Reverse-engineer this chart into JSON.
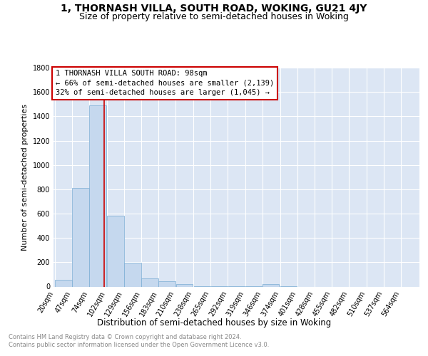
{
  "title": "1, THORNASH VILLA, SOUTH ROAD, WOKING, GU21 4JY",
  "subtitle": "Size of property relative to semi-detached houses in Woking",
  "xlabel": "Distribution of semi-detached houses by size in Woking",
  "ylabel": "Number of semi-detached properties",
  "bins_start": [
    20,
    47,
    74,
    102,
    129,
    156,
    183,
    210,
    238,
    265,
    292,
    319,
    346,
    374,
    401,
    428,
    455,
    482,
    510,
    537
  ],
  "bin_width": 27,
  "last_tick": 564,
  "values": [
    55,
    810,
    1490,
    580,
    195,
    65,
    45,
    20,
    5,
    3,
    2,
    2,
    20,
    2,
    0,
    0,
    0,
    0,
    0,
    0
  ],
  "bar_color": "#c5d8ee",
  "bar_edge_color": "#7aadd4",
  "property_size": 98,
  "annotation_line1": "1 THORNASH VILLA SOUTH ROAD: 98sqm",
  "annotation_line2": "← 66% of semi-detached houses are smaller (2,139)",
  "annotation_line3": "32% of semi-detached houses are larger (1,045) →",
  "vline_color": "#cc0000",
  "annotation_edge_color": "#cc0000",
  "annotation_bg": "#ffffff",
  "ylim": [
    0,
    1800
  ],
  "yticks": [
    0,
    200,
    400,
    600,
    800,
    1000,
    1200,
    1400,
    1600,
    1800
  ],
  "xtick_labels": [
    "20sqm",
    "47sqm",
    "74sqm",
    "102sqm",
    "129sqm",
    "156sqm",
    "183sqm",
    "210sqm",
    "238sqm",
    "265sqm",
    "292sqm",
    "319sqm",
    "346sqm",
    "374sqm",
    "401sqm",
    "428sqm",
    "455sqm",
    "482sqm",
    "510sqm",
    "537sqm",
    "564sqm"
  ],
  "plot_bg_color": "#dce6f4",
  "grid_color": "#ffffff",
  "title_fontsize": 10,
  "subtitle_fontsize": 9,
  "tick_fontsize": 7,
  "ylabel_fontsize": 8,
  "xlabel_fontsize": 8.5,
  "annotation_fontsize": 7.5,
  "footer_line1": "Contains HM Land Registry data © Crown copyright and database right 2024.",
  "footer_line2": "Contains public sector information licensed under the Open Government Licence v3.0."
}
